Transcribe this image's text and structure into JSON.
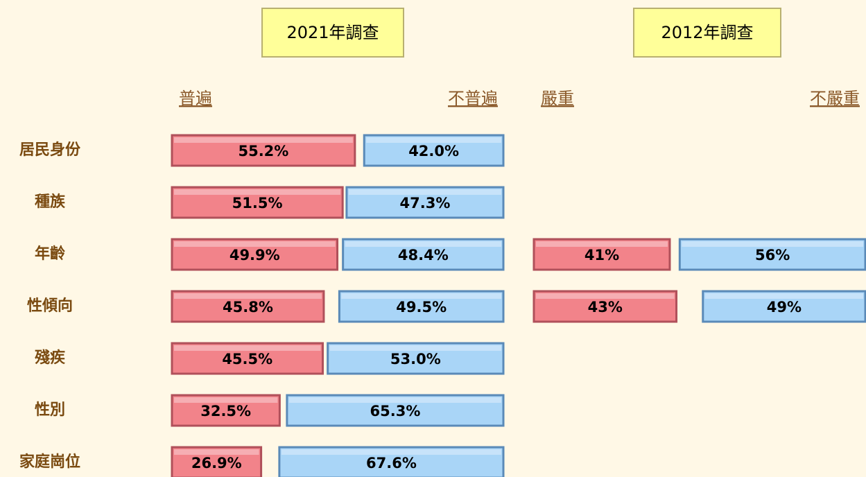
{
  "chart_data": [
    {
      "type": "diverging-bar",
      "title": "2021年調查",
      "categories": [
        "居民身份",
        "種族",
        "年齡",
        "性傾向",
        "殘疾",
        "性別",
        "家庭崗位"
      ],
      "xlim": [
        0,
        100
      ],
      "series": [
        {
          "name": "普遍",
          "color": "#f2838a",
          "values": [
            55.2,
            51.5,
            49.9,
            45.8,
            45.5,
            32.5,
            26.9
          ],
          "value_labels": [
            "55.2%",
            "51.5%",
            "49.9%",
            "45.8%",
            "45.5%",
            "32.5%",
            "26.9%"
          ]
        },
        {
          "name": "不普遍",
          "color": "#a9d5f7",
          "values": [
            42.0,
            47.3,
            48.4,
            49.5,
            53.0,
            65.3,
            67.6
          ],
          "value_labels": [
            "42.0%",
            "47.3%",
            "48.4%",
            "49.5%",
            "53.0%",
            "65.3%",
            "67.6%"
          ]
        }
      ]
    },
    {
      "type": "diverging-bar",
      "title": "2012年調查",
      "xlim": [
        0,
        100
      ],
      "series": [
        {
          "name": "嚴重",
          "color": "#f2838a",
          "values": [
            null,
            null,
            41,
            43,
            null,
            null,
            null
          ],
          "value_labels": [
            null,
            null,
            "41%",
            "43%",
            null,
            null,
            null
          ]
        },
        {
          "name": "不嚴重",
          "color": "#a9d5f7",
          "values": [
            null,
            null,
            56,
            49,
            null,
            null,
            null
          ],
          "value_labels": [
            null,
            null,
            "56%",
            "49%",
            null,
            null,
            null
          ]
        }
      ]
    }
  ]
}
